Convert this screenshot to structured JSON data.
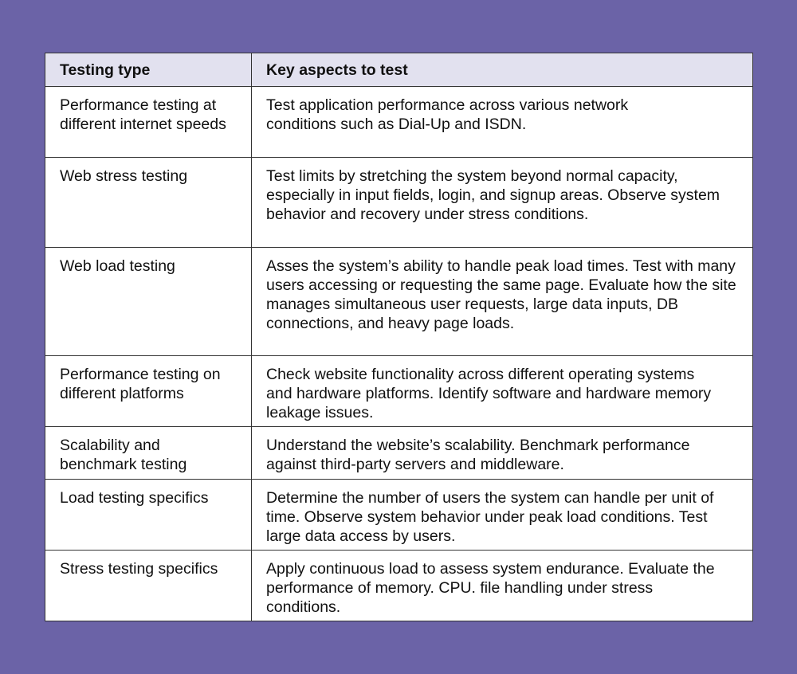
{
  "table": {
    "headers": [
      "Testing type",
      "Key aspects to test"
    ],
    "rows": [
      {
        "type": "Performance testing at different internet speeds",
        "aspects": "Test application performance across various network conditions such as Dial-Up and ISDN."
      },
      {
        "type": "Web stress testing",
        "aspects": "Test limits by stretching the system beyond normal capacity, especially in input fields, login, and signup areas. Observe system behavior and recovery under stress conditions."
      },
      {
        "type": "Web load testing",
        "aspects": "Asses the system’s ability to handle peak load times. Test with many users accessing or requesting the same page. Evaluate how the site manages simultaneous user requests, large data inputs, DB connections, and heavy page loads."
      },
      {
        "type": "Performance testing on different platforms",
        "aspects": "Check website functionality across different operating systems and hardware platforms. Identify software and hardware memory leakage issues."
      },
      {
        "type": "Scalability and benchmark testing",
        "aspects": "Understand the website’s scalability. Benchmark performance against third-party servers and middleware."
      },
      {
        "type": "Load testing specifics",
        "aspects": "Determine the number of users the system can handle per unit of time. Observe system behavior under peak load conditions. Test large data access by users."
      },
      {
        "type": "Stress testing specifics",
        "aspects": "Apply continuous load to assess system endurance. Evaluate the performance of memory. CPU. file handling under stress conditions."
      }
    ]
  },
  "colors": {
    "background": "#6b63a7",
    "header": "#e2e1ef"
  }
}
